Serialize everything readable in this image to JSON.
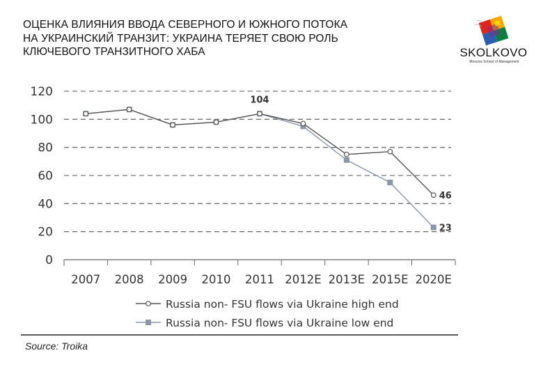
{
  "header": {
    "title_lines": [
      "ОЦЕНКА ВЛИЯНИЯ ВВОДА СЕВЕРНОГО И ЮЖНОГО ПОТОКА",
      "НА УКРАИНСКИЙ ТРАНЗИТ: УКРАИНА ТЕРЯЕТ СВОЮ РОЛЬ",
      "КЛЮЧЕВОГО ТРАНЗИТНОГО ХАБА"
    ]
  },
  "logo": {
    "name": "SKOLKOVO",
    "tagline": "Moscow School of Management",
    "colors": [
      "#e2231a",
      "#f7a600",
      "#0a7f3f",
      "#2b5fb3",
      "#7b2d8e",
      "#f2e500"
    ]
  },
  "chart_data": {
    "type": "line",
    "categories": [
      "2007",
      "2008",
      "2009",
      "2010",
      "2011",
      "2012E",
      "2013E",
      "2015E",
      "2020E"
    ],
    "ylim": [
      0,
      120
    ],
    "yticks": [
      "0",
      "20",
      "40",
      "60",
      "80",
      "100",
      "120"
    ],
    "grid": "dashed horizontal",
    "series": [
      {
        "name": "Russia non- FSU flows via Ukraine high end",
        "marker": "open-circle",
        "color": "#555555",
        "values": [
          104,
          107,
          96,
          98,
          104,
          97,
          75,
          77,
          46
        ]
      },
      {
        "name": "Russia non- FSU flows via Ukraine low end",
        "marker": "square",
        "color": "#8a97a8",
        "values": [
          104,
          107,
          96,
          98,
          104,
          95,
          71,
          55,
          23
        ]
      }
    ],
    "annotations": [
      {
        "text": "104",
        "series": 0,
        "index": 4
      },
      {
        "text": "46",
        "series": 0,
        "index": 8
      },
      {
        "text": "23",
        "series": 1,
        "index": 8
      }
    ],
    "legend_position": "bottom"
  },
  "footer": {
    "source": "Source: Troika"
  }
}
